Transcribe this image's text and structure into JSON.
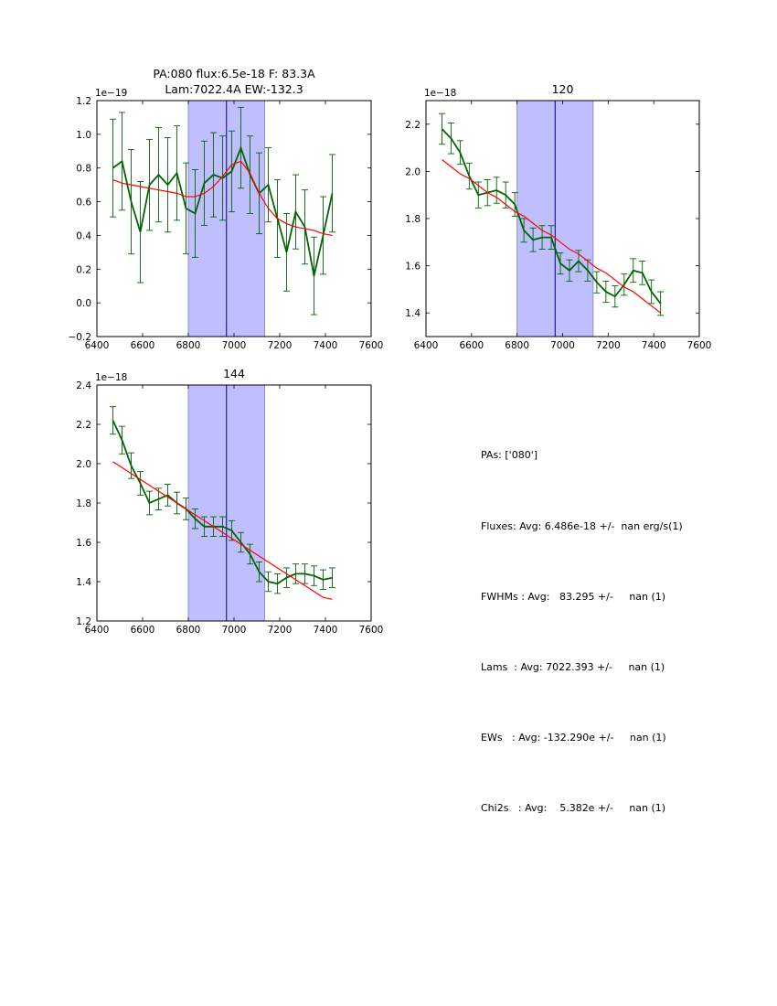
{
  "colors": {
    "data_line": "#006400",
    "fit_line": "#ff0000",
    "band_fill": "#bfbfff",
    "band_edge": "#7a7ad0",
    "center_line": "#00008b"
  },
  "chart_data": [
    {
      "type": "line",
      "title": "PA:080 flux:6.5e-18 F: 83.3A",
      "title2": "Lam:7022.4A EW:-132.3",
      "offset_label": "1e−19",
      "xlim": [
        6400,
        7600
      ],
      "ylim": [
        -0.2,
        1.2
      ],
      "xticks": [
        6400,
        6600,
        6800,
        7000,
        7200,
        7400,
        7600
      ],
      "xtick_labels": [
        "6400",
        "6600",
        "6800",
        "7000",
        "7200",
        "7400",
        "7600"
      ],
      "yticks": [
        -0.2,
        0.0,
        0.2,
        0.4,
        0.6,
        0.8,
        1.0,
        1.2
      ],
      "ytick_labels": [
        "−0.2",
        "0.0",
        "0.2",
        "0.4",
        "0.6",
        "0.8",
        "1.0",
        "1.2"
      ],
      "band": [
        6800,
        7134
      ],
      "center": 6967,
      "x": [
        6470,
        6510,
        6550,
        6590,
        6630,
        6670,
        6710,
        6750,
        6790,
        6830,
        6870,
        6910,
        6950,
        6990,
        7030,
        7070,
        7110,
        7150,
        7190,
        7230,
        7270,
        7310,
        7350,
        7390,
        7430
      ],
      "series": [
        {
          "name": "data",
          "values": [
            0.8,
            0.84,
            0.6,
            0.42,
            0.7,
            0.76,
            0.7,
            0.77,
            0.56,
            0.53,
            0.71,
            0.76,
            0.74,
            0.78,
            0.92,
            0.76,
            0.65,
            0.7,
            0.5,
            0.3,
            0.54,
            0.45,
            0.16,
            0.4,
            0.65
          ]
        },
        {
          "name": "err",
          "values": [
            0.29,
            0.29,
            0.31,
            0.3,
            0.27,
            0.28,
            0.28,
            0.28,
            0.27,
            0.26,
            0.25,
            0.25,
            0.25,
            0.24,
            0.24,
            0.23,
            0.24,
            0.22,
            0.23,
            0.23,
            0.22,
            0.22,
            0.23,
            0.23,
            0.23
          ]
        },
        {
          "name": "fit",
          "values": [
            0.73,
            0.71,
            0.7,
            0.69,
            0.68,
            0.67,
            0.66,
            0.65,
            0.63,
            0.63,
            0.65,
            0.69,
            0.75,
            0.82,
            0.84,
            0.77,
            0.65,
            0.56,
            0.5,
            0.47,
            0.45,
            0.44,
            0.43,
            0.41,
            0.4
          ]
        }
      ]
    },
    {
      "type": "line",
      "title": "120",
      "offset_label": "1e−18",
      "xlim": [
        6400,
        7600
      ],
      "ylim": [
        1.3,
        2.3
      ],
      "xticks": [
        6400,
        6600,
        6800,
        7000,
        7200,
        7400,
        7600
      ],
      "xtick_labels": [
        "6400",
        "6600",
        "6800",
        "7000",
        "7200",
        "7400",
        "7600"
      ],
      "yticks": [
        1.4,
        1.6,
        1.8,
        2.0,
        2.2
      ],
      "ytick_labels": [
        "1.4",
        "1.6",
        "1.8",
        "2.0",
        "2.2"
      ],
      "band": [
        6800,
        7134
      ],
      "center": 6967,
      "x": [
        6470,
        6510,
        6550,
        6590,
        6630,
        6670,
        6710,
        6750,
        6790,
        6830,
        6870,
        6910,
        6950,
        6990,
        7030,
        7070,
        7110,
        7150,
        7190,
        7230,
        7270,
        7310,
        7350,
        7390,
        7430
      ],
      "series": [
        {
          "name": "data",
          "values": [
            2.18,
            2.14,
            2.08,
            1.98,
            1.9,
            1.91,
            1.92,
            1.9,
            1.86,
            1.75,
            1.71,
            1.72,
            1.72,
            1.61,
            1.58,
            1.62,
            1.58,
            1.53,
            1.49,
            1.47,
            1.52,
            1.58,
            1.57,
            1.49,
            1.44
          ]
        },
        {
          "name": "err",
          "values": [
            0.065,
            0.065,
            0.05,
            0.055,
            0.055,
            0.055,
            0.055,
            0.055,
            0.05,
            0.05,
            0.05,
            0.05,
            0.05,
            0.045,
            0.045,
            0.045,
            0.045,
            0.045,
            0.045,
            0.045,
            0.045,
            0.05,
            0.05,
            0.05,
            0.05
          ]
        },
        {
          "name": "fit",
          "values": [
            2.05,
            2.02,
            1.99,
            1.97,
            1.94,
            1.91,
            1.89,
            1.86,
            1.83,
            1.81,
            1.78,
            1.75,
            1.73,
            1.7,
            1.67,
            1.65,
            1.62,
            1.59,
            1.57,
            1.54,
            1.51,
            1.49,
            1.46,
            1.43,
            1.4
          ]
        }
      ]
    },
    {
      "type": "line",
      "title": "144",
      "offset_label": "1e−18",
      "xlim": [
        6400,
        7600
      ],
      "ylim": [
        1.2,
        2.4
      ],
      "xticks": [
        6400,
        6600,
        6800,
        7000,
        7200,
        7400,
        7600
      ],
      "xtick_labels": [
        "6400",
        "6600",
        "6800",
        "7000",
        "7200",
        "7400",
        "7600"
      ],
      "yticks": [
        1.2,
        1.4,
        1.6,
        1.8,
        2.0,
        2.2,
        2.4
      ],
      "ytick_labels": [
        "1.2",
        "1.4",
        "1.6",
        "1.8",
        "2.0",
        "2.2",
        "2.4"
      ],
      "band": [
        6800,
        7134
      ],
      "center": 6967,
      "x": [
        6470,
        6510,
        6550,
        6590,
        6630,
        6670,
        6710,
        6750,
        6790,
        6830,
        6870,
        6910,
        6950,
        6990,
        7030,
        7070,
        7110,
        7150,
        7190,
        7230,
        7270,
        7310,
        7350,
        7390,
        7430
      ],
      "series": [
        {
          "name": "data",
          "values": [
            2.22,
            2.12,
            1.99,
            1.9,
            1.8,
            1.82,
            1.84,
            1.8,
            1.77,
            1.72,
            1.68,
            1.68,
            1.68,
            1.66,
            1.6,
            1.54,
            1.45,
            1.4,
            1.39,
            1.42,
            1.44,
            1.44,
            1.43,
            1.41,
            1.42
          ]
        },
        {
          "name": "err",
          "values": [
            0.07,
            0.07,
            0.065,
            0.06,
            0.06,
            0.055,
            0.055,
            0.055,
            0.055,
            0.05,
            0.05,
            0.05,
            0.05,
            0.05,
            0.05,
            0.05,
            0.05,
            0.05,
            0.05,
            0.05,
            0.05,
            0.05,
            0.05,
            0.05,
            0.05
          ]
        },
        {
          "name": "fit",
          "values": [
            2.01,
            1.98,
            1.95,
            1.92,
            1.89,
            1.86,
            1.83,
            1.8,
            1.77,
            1.74,
            1.71,
            1.68,
            1.65,
            1.62,
            1.59,
            1.56,
            1.53,
            1.5,
            1.47,
            1.44,
            1.41,
            1.38,
            1.35,
            1.32,
            1.31
          ]
        }
      ]
    }
  ],
  "summary": {
    "lines": [
      "PAs: ['080']",
      "Fluxes: Avg: 6.486e-18 +/-  nan erg/s(1)",
      "FWHMs : Avg:   83.295 +/-     nan (1)",
      "Lams  : Avg: 7022.393 +/-     nan (1)",
      "EWs   : Avg: -132.290e +/-     nan (1)",
      "Chi2s   : Avg:    5.382e +/-     nan (1)"
    ]
  }
}
